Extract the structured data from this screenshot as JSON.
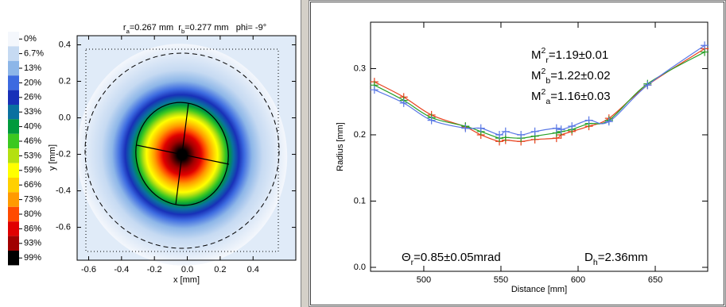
{
  "chart_data": [
    {
      "type": "heatmap",
      "title_parts": [
        {
          "text": "r"
        },
        {
          "text": "a",
          "sub": true
        },
        {
          "text": "=0.267 mm  "
        },
        {
          "text": "r"
        },
        {
          "text": "b",
          "sub": true
        },
        {
          "text": "=0.277 mm   phi= -9°"
        }
      ],
      "x_label": "x [mm]",
      "y_label": "y [mm]",
      "xlim": [
        -0.67,
        0.66
      ],
      "ylim": [
        -0.78,
        0.45
      ],
      "xticks": [
        -0.6,
        -0.4,
        -0.2,
        {
          "value": 0,
          "label": "0.0"
        },
        0.2,
        0.4
      ],
      "yticks": [
        0.4,
        0.2,
        {
          "value": 0,
          "label": "0.0"
        },
        -0.2,
        -0.4,
        -0.6
      ],
      "colorbar": {
        "ticks": [
          {
            "value": 0,
            "label": "0%"
          },
          {
            "value": 6.7,
            "label": "6.7%"
          },
          {
            "value": 13,
            "label": "13%"
          },
          {
            "value": 20,
            "label": "20%"
          },
          {
            "value": 26,
            "label": "26%"
          },
          {
            "value": 33,
            "label": "33%"
          },
          {
            "value": 40,
            "label": "40%"
          },
          {
            "value": 46,
            "label": "46%"
          },
          {
            "value": 53,
            "label": "53%"
          },
          {
            "value": 59,
            "label": "59%"
          },
          {
            "value": 66,
            "label": "66%"
          },
          {
            "value": 73,
            "label": "73%"
          },
          {
            "value": 80,
            "label": "80%"
          },
          {
            "value": 86,
            "label": "86%"
          },
          {
            "value": 93,
            "label": "93%"
          },
          {
            "value": 99,
            "label": "99%"
          }
        ],
        "colors": [
          "#f4f7fc",
          "#c6daf2",
          "#8db6e8",
          "#3c6ae0",
          "#1830b8",
          "#0a70a0",
          "#009a3c",
          "#3cc820",
          "#b4e010",
          "#ffff00",
          "#ffd000",
          "#ff9a00",
          "#ff4a00",
          "#e00000",
          "#a00000",
          "#000000"
        ]
      }
    },
    {
      "type": "line",
      "x_label": "Distance [mm]",
      "y_label": "Radius [mm]",
      "xlim": [
        465.5,
        684
      ],
      "ylim": [
        -0.006,
        0.37
      ],
      "xticks": [
        500,
        550,
        600,
        650
      ],
      "yticks": [
        {
          "value": 0,
          "label": "0.0"
        },
        0.1,
        0.2,
        0.3
      ],
      "x": [
        468,
        487,
        505,
        527,
        537,
        549,
        553,
        563,
        572,
        586,
        589,
        596,
        607,
        620,
        645,
        682
      ],
      "series": [
        {
          "color": "#e8401c",
          "values": [
            0.28,
            0.257,
            0.23,
            0.212,
            0.2,
            0.19,
            0.192,
            0.19,
            0.193,
            0.195,
            0.2,
            0.205,
            0.213,
            0.225,
            0.275,
            0.33
          ]
        },
        {
          "color": "#27a027",
          "values": [
            0.275,
            0.252,
            0.226,
            0.213,
            0.205,
            0.195,
            0.196,
            0.195,
            0.198,
            0.203,
            0.205,
            0.208,
            0.217,
            0.222,
            0.277,
            0.325
          ]
        },
        {
          "color": "#5a78e6",
          "values": [
            0.268,
            0.248,
            0.222,
            0.21,
            0.21,
            0.2,
            0.205,
            0.2,
            0.205,
            0.21,
            0.208,
            0.213,
            0.222,
            0.22,
            0.275,
            0.335
          ]
        }
      ],
      "annotations": [
        {
          "color": "#22a022",
          "parts": [
            {
              "text": "M"
            },
            {
              "text": "2",
              "sup": true
            },
            {
              "text": "r",
              "sub": true
            },
            {
              "text": "=1.19±0.01"
            }
          ]
        },
        {
          "color": "#e84a1a",
          "parts": [
            {
              "text": "M"
            },
            {
              "text": "2",
              "sup": true
            },
            {
              "text": "b",
              "sub": true
            },
            {
              "text": "=1.22±0.02"
            }
          ]
        },
        {
          "color": "#6a82e8",
          "parts": [
            {
              "text": "M"
            },
            {
              "text": "2",
              "sup": true
            },
            {
              "text": "a",
              "sub": true
            },
            {
              "text": "=1.16±0.03"
            }
          ]
        },
        {
          "color": "#22a022",
          "parts": [
            {
              "text": "Θ"
            },
            {
              "text": "r",
              "sub": true
            },
            {
              "text": "=0.85±0.05mrad"
            }
          ]
        },
        {
          "color": "#22a022",
          "parts": [
            {
              "text": "D"
            },
            {
              "text": "h",
              "sub": true
            },
            {
              "text": "=2.36mm"
            }
          ]
        }
      ]
    }
  ]
}
